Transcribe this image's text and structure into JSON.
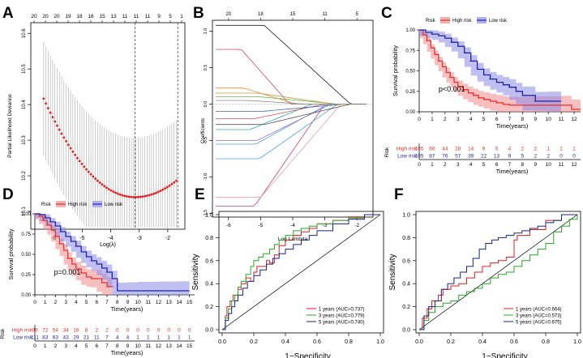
{
  "chart_data": [
    {
      "panel": "A",
      "type": "scatter",
      "subtype": "lasso-cv",
      "ylabel": "Partial Likelihood Deviance",
      "xlabel": "Log(λ)",
      "top_ticks": [
        "20",
        "20",
        "20",
        "19",
        "18",
        "16",
        "15",
        "13",
        "11",
        "11",
        "11",
        "9",
        "5",
        "1"
      ],
      "x_ticks": [
        "-6",
        "-5",
        "-4",
        "-3",
        "-2"
      ],
      "y_ticks": [
        "10.1",
        "10.2",
        "10.3",
        "10.4",
        "10.5",
        "10.6"
      ],
      "xlim": [
        -6.8,
        -1.4
      ],
      "ylim": [
        10.05,
        10.63
      ],
      "vlines": [
        -3.15,
        -1.65
      ],
      "point_color": "#e41a1c",
      "ci_color": "#aaaaaa"
    },
    {
      "panel": "B",
      "type": "line",
      "subtype": "lasso-coefficient-paths",
      "ylabel": "Coefficients",
      "xlabel": "Log Lambda",
      "top_ticks": [
        "20",
        "18",
        "15",
        "11",
        "5"
      ],
      "x_ticks": [
        "-6",
        "-5",
        "-4",
        "-3",
        "-2"
      ],
      "y_ticks": [
        "-1.5",
        "-1.0",
        "-0.5",
        "0.0",
        "0.5",
        "1.0"
      ],
      "xlim": [
        -6.5,
        -1.5
      ],
      "ylim": [
        -1.55,
        1.15
      ]
    },
    {
      "panel": "C",
      "type": "line",
      "subtype": "kaplan-meier",
      "title": "",
      "legend_title": "Risk",
      "legend": [
        "High risk",
        "Low risk"
      ],
      "ylabel": "Survival probability",
      "xlabel": "Time(years)",
      "x_ticks": [
        "0",
        "1",
        "2",
        "3",
        "4",
        "5",
        "6",
        "7",
        "8",
        "9",
        "10",
        "11",
        "12"
      ],
      "y_ticks": [
        "0.00",
        "0.25",
        "0.50",
        "0.75",
        "1.00"
      ],
      "xlim": [
        0,
        12.5
      ],
      "ylim": [
        0,
        1
      ],
      "pvalue": "p<0.001",
      "series": [
        {
          "name": "High risk",
          "color": "#e8312f",
          "x": [
            0,
            0.3,
            0.6,
            0.9,
            1.2,
            1.5,
            1.8,
            2.1,
            2.4,
            2.7,
            3.0,
            3.4,
            3.8,
            4.2,
            4.6,
            5.0,
            5.5,
            6.0,
            6.5,
            7.0,
            8.0,
            9.0,
            10.0,
            11.0,
            11.8,
            12.5
          ],
          "y": [
            1.0,
            0.94,
            0.87,
            0.78,
            0.7,
            0.62,
            0.55,
            0.48,
            0.42,
            0.36,
            0.31,
            0.27,
            0.23,
            0.2,
            0.17,
            0.15,
            0.13,
            0.11,
            0.09,
            0.08,
            0.08,
            0.08,
            0.08,
            0.08,
            0.03,
            0.03
          ]
        },
        {
          "name": "Low risk",
          "color": "#2323a8",
          "x": [
            0,
            0.5,
            1.0,
            1.5,
            2.0,
            2.5,
            3.0,
            3.5,
            4.0,
            4.5,
            5.0,
            5.5,
            6.0,
            6.5,
            7.0,
            7.5,
            8.0,
            9.0,
            10.0,
            11.0
          ],
          "y": [
            1.0,
            0.97,
            0.95,
            0.93,
            0.9,
            0.85,
            0.8,
            0.72,
            0.62,
            0.52,
            0.45,
            0.4,
            0.36,
            0.33,
            0.3,
            0.25,
            0.2,
            0.13,
            0.13,
            0.13
          ]
        }
      ],
      "risk_table": {
        "title": "Risk",
        "times": [
          "0",
          "1",
          "2",
          "3",
          "4",
          "5",
          "6",
          "7",
          "8",
          "9",
          "10",
          "11",
          "12"
        ],
        "rows": [
          {
            "label": "High risk",
            "values": [
              "105",
              "66",
              "44",
              "28",
              "14",
              "9",
              "5",
              "4",
              "2",
              "2",
              "1",
              "1",
              "1"
            ]
          },
          {
            "label": "Low risk",
            "values": [
              "105",
              "87",
              "76",
              "57",
              "39",
              "22",
              "13",
              "9",
              "5",
              "2",
              "2",
              "0",
              "0"
            ]
          }
        ],
        "xlabel": "Time(years)"
      }
    },
    {
      "panel": "D",
      "type": "line",
      "subtype": "kaplan-meier",
      "legend_title": "Risk",
      "legend": [
        "High risk",
        "Low risk"
      ],
      "ylabel": "Survival probability",
      "xlabel": "Time(years)",
      "x_ticks": [
        "0",
        "1",
        "2",
        "3",
        "4",
        "5",
        "6",
        "7",
        "8",
        "9",
        "10",
        "11",
        "12",
        "13",
        "14",
        "15"
      ],
      "y_ticks": [
        "0.00",
        "0.25",
        "0.50",
        "0.75",
        "1.00"
      ],
      "xlim": [
        0,
        15.5
      ],
      "ylim": [
        0,
        1
      ],
      "pvalue": "p=0.001",
      "series": [
        {
          "name": "High risk",
          "color": "#e8312f",
          "x": [
            0,
            0.4,
            0.8,
            1.2,
            1.6,
            2.0,
            2.4,
            2.8,
            3.2,
            3.6,
            4.0,
            4.5,
            5.0,
            5.5,
            6.0,
            6.5,
            7.0,
            7.5
          ],
          "y": [
            1.0,
            0.97,
            0.92,
            0.86,
            0.8,
            0.72,
            0.63,
            0.55,
            0.45,
            0.38,
            0.32,
            0.27,
            0.22,
            0.2,
            0.2,
            0.15,
            0.1,
            0.1
          ]
        },
        {
          "name": "Low risk",
          "color": "#2323a8",
          "x": [
            0,
            0.5,
            1.0,
            1.5,
            2.0,
            2.5,
            3.0,
            3.5,
            4.0,
            4.5,
            5.0,
            5.5,
            6.0,
            6.5,
            7.0,
            7.5,
            8.0,
            9.0,
            10.0,
            12.0,
            14.0,
            15.0
          ],
          "y": [
            1.0,
            0.99,
            0.95,
            0.9,
            0.85,
            0.78,
            0.72,
            0.66,
            0.6,
            0.53,
            0.47,
            0.42,
            0.38,
            0.33,
            0.28,
            0.2,
            0.05,
            0.05,
            0.05,
            0.05,
            0.05,
            0.05
          ]
        }
      ],
      "risk_table": {
        "title": "Risk",
        "times": [
          "0",
          "1",
          "2",
          "3",
          "4",
          "5",
          "6",
          "7",
          "8",
          "9",
          "10",
          "11",
          "12",
          "13",
          "14",
          "15"
        ],
        "rows": [
          {
            "label": "High risk",
            "values": [
              "99",
              "72",
              "54",
              "34",
              "16",
              "8",
              "2",
              "2",
              "0",
              "0",
              "0",
              "0",
              "0",
              "0",
              "0",
              "0"
            ]
          },
          {
            "label": "Low risk",
            "values": [
              "111",
              "83",
              "63",
              "43",
              "29",
              "21",
              "11",
              "7",
              "4",
              "4",
              "1",
              "1",
              "1",
              "1",
              "1",
              "1"
            ]
          }
        ],
        "xlabel": "Time(years)"
      }
    },
    {
      "panel": "E",
      "type": "line",
      "subtype": "roc",
      "xlabel": "1−Specificity",
      "ylabel": "Sensitivity",
      "x_ticks": [
        "0.0",
        "0.2",
        "0.4",
        "0.6",
        "0.8",
        "1.0"
      ],
      "y_ticks": [
        "0.0",
        "0.2",
        "0.4",
        "0.6",
        "0.8",
        "1.0"
      ],
      "series": [
        {
          "name": "1 years (AUC=0.737)",
          "color": "#e41a1c",
          "x": [
            0,
            0.02,
            0.03,
            0.05,
            0.07,
            0.1,
            0.12,
            0.15,
            0.18,
            0.2,
            0.22,
            0.25,
            0.28,
            0.3,
            0.33,
            0.36,
            0.4,
            0.45,
            0.5,
            0.55,
            0.6,
            0.7,
            0.8,
            0.9,
            1.0
          ],
          "y": [
            0,
            0.12,
            0.2,
            0.25,
            0.3,
            0.35,
            0.4,
            0.45,
            0.42,
            0.5,
            0.55,
            0.55,
            0.6,
            0.58,
            0.65,
            0.73,
            0.78,
            0.82,
            0.85,
            0.88,
            0.92,
            0.95,
            0.98,
            1.0,
            1.0
          ]
        },
        {
          "name": "3 years (AUC=0.779)",
          "color": "#27a827",
          "x": [
            0,
            0.02,
            0.04,
            0.06,
            0.08,
            0.1,
            0.12,
            0.15,
            0.18,
            0.2,
            0.23,
            0.26,
            0.3,
            0.33,
            0.36,
            0.4,
            0.45,
            0.5,
            0.55,
            0.6,
            0.7,
            0.8,
            0.9,
            1.0
          ],
          "y": [
            0,
            0.1,
            0.18,
            0.25,
            0.3,
            0.37,
            0.42,
            0.48,
            0.55,
            0.6,
            0.63,
            0.66,
            0.7,
            0.74,
            0.78,
            0.82,
            0.86,
            0.88,
            0.9,
            0.92,
            0.95,
            0.97,
            1.0,
            1.0
          ]
        },
        {
          "name": "5 years (AUC=0.740)",
          "color": "#1a237e",
          "x": [
            0,
            0.02,
            0.04,
            0.06,
            0.08,
            0.1,
            0.13,
            0.16,
            0.2,
            0.24,
            0.28,
            0.32,
            0.36,
            0.4,
            0.45,
            0.5,
            0.55,
            0.6,
            0.7,
            0.8,
            0.9,
            1.0
          ],
          "y": [
            0,
            0.08,
            0.14,
            0.2,
            0.25,
            0.3,
            0.36,
            0.42,
            0.47,
            0.52,
            0.57,
            0.62,
            0.66,
            0.7,
            0.74,
            0.78,
            0.82,
            0.86,
            0.92,
            0.96,
            1.0,
            1.0
          ]
        }
      ]
    },
    {
      "panel": "F",
      "type": "line",
      "subtype": "roc",
      "xlabel": "1−Specificity",
      "ylabel": "Sensitivity",
      "x_ticks": [
        "0.0",
        "0.2",
        "0.4",
        "0.6",
        "0.8",
        "1.0"
      ],
      "y_ticks": [
        "0.0",
        "0.2",
        "0.4",
        "0.6",
        "0.8",
        "1.0"
      ],
      "series": [
        {
          "name": "1 years (AUC=0.664)",
          "color": "#e41a1c",
          "x": [
            0,
            0.02,
            0.05,
            0.08,
            0.12,
            0.15,
            0.2,
            0.25,
            0.3,
            0.35,
            0.4,
            0.45,
            0.5,
            0.55,
            0.6,
            0.62,
            0.66,
            0.7,
            0.75,
            0.8,
            0.85,
            0.9,
            1.0
          ],
          "y": [
            0,
            0.1,
            0.18,
            0.25,
            0.3,
            0.35,
            0.38,
            0.4,
            0.45,
            0.5,
            0.55,
            0.58,
            0.6,
            0.63,
            0.78,
            0.82,
            0.82,
            0.87,
            0.87,
            0.95,
            0.95,
            1.0,
            1.0
          ]
        },
        {
          "name": "3 years (AUC=0.573)",
          "color": "#27a827",
          "x": [
            0,
            0.03,
            0.06,
            0.1,
            0.15,
            0.2,
            0.25,
            0.3,
            0.35,
            0.4,
            0.45,
            0.5,
            0.55,
            0.6,
            0.65,
            0.7,
            0.75,
            0.8,
            0.85,
            0.9,
            0.95,
            1.0
          ],
          "y": [
            0,
            0.08,
            0.15,
            0.2,
            0.23,
            0.25,
            0.3,
            0.33,
            0.36,
            0.4,
            0.45,
            0.48,
            0.5,
            0.55,
            0.6,
            0.65,
            0.7,
            0.75,
            0.85,
            0.9,
            0.96,
            1.0
          ]
        },
        {
          "name": "5 years (AUC=0.675)",
          "color": "#1a237e",
          "x": [
            0,
            0.03,
            0.06,
            0.1,
            0.14,
            0.18,
            0.22,
            0.26,
            0.3,
            0.34,
            0.38,
            0.42,
            0.46,
            0.5,
            0.55,
            0.6,
            0.65,
            0.7,
            0.75,
            0.8,
            0.85,
            0.9,
            1.0
          ],
          "y": [
            0,
            0.12,
            0.2,
            0.25,
            0.35,
            0.4,
            0.45,
            0.5,
            0.55,
            0.62,
            0.7,
            0.75,
            0.78,
            0.8,
            0.82,
            0.84,
            0.86,
            0.88,
            0.9,
            0.93,
            0.95,
            1.0,
            1.0
          ]
        }
      ]
    }
  ]
}
